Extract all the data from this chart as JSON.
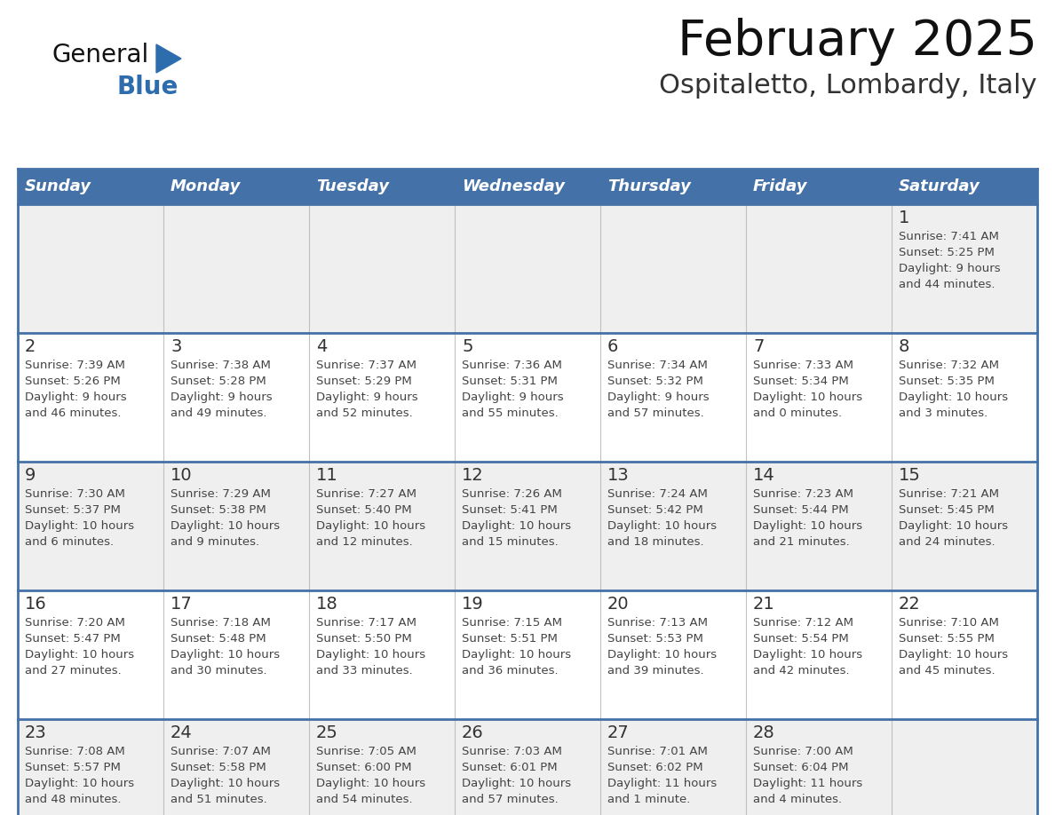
{
  "title": "February 2025",
  "subtitle": "Ospitaletto, Lombardy, Italy",
  "days_of_week": [
    "Sunday",
    "Monday",
    "Tuesday",
    "Wednesday",
    "Thursday",
    "Friday",
    "Saturday"
  ],
  "header_bg": "#4472A8",
  "header_text": "#FFFFFF",
  "cell_bg_light": "#EFEFEF",
  "cell_bg_white": "#FFFFFF",
  "cell_border": "#4472A8",
  "day_num_color": "#333333",
  "info_color": "#444444",
  "title_color": "#111111",
  "subtitle_color": "#333333",
  "logo_general_color": "#111111",
  "logo_blue_color": "#2E6DAD",
  "weeks": [
    [
      {
        "day": null,
        "info": ""
      },
      {
        "day": null,
        "info": ""
      },
      {
        "day": null,
        "info": ""
      },
      {
        "day": null,
        "info": ""
      },
      {
        "day": null,
        "info": ""
      },
      {
        "day": null,
        "info": ""
      },
      {
        "day": 1,
        "info": "Sunrise: 7:41 AM\nSunset: 5:25 PM\nDaylight: 9 hours\nand 44 minutes."
      }
    ],
    [
      {
        "day": 2,
        "info": "Sunrise: 7:39 AM\nSunset: 5:26 PM\nDaylight: 9 hours\nand 46 minutes."
      },
      {
        "day": 3,
        "info": "Sunrise: 7:38 AM\nSunset: 5:28 PM\nDaylight: 9 hours\nand 49 minutes."
      },
      {
        "day": 4,
        "info": "Sunrise: 7:37 AM\nSunset: 5:29 PM\nDaylight: 9 hours\nand 52 minutes."
      },
      {
        "day": 5,
        "info": "Sunrise: 7:36 AM\nSunset: 5:31 PM\nDaylight: 9 hours\nand 55 minutes."
      },
      {
        "day": 6,
        "info": "Sunrise: 7:34 AM\nSunset: 5:32 PM\nDaylight: 9 hours\nand 57 minutes."
      },
      {
        "day": 7,
        "info": "Sunrise: 7:33 AM\nSunset: 5:34 PM\nDaylight: 10 hours\nand 0 minutes."
      },
      {
        "day": 8,
        "info": "Sunrise: 7:32 AM\nSunset: 5:35 PM\nDaylight: 10 hours\nand 3 minutes."
      }
    ],
    [
      {
        "day": 9,
        "info": "Sunrise: 7:30 AM\nSunset: 5:37 PM\nDaylight: 10 hours\nand 6 minutes."
      },
      {
        "day": 10,
        "info": "Sunrise: 7:29 AM\nSunset: 5:38 PM\nDaylight: 10 hours\nand 9 minutes."
      },
      {
        "day": 11,
        "info": "Sunrise: 7:27 AM\nSunset: 5:40 PM\nDaylight: 10 hours\nand 12 minutes."
      },
      {
        "day": 12,
        "info": "Sunrise: 7:26 AM\nSunset: 5:41 PM\nDaylight: 10 hours\nand 15 minutes."
      },
      {
        "day": 13,
        "info": "Sunrise: 7:24 AM\nSunset: 5:42 PM\nDaylight: 10 hours\nand 18 minutes."
      },
      {
        "day": 14,
        "info": "Sunrise: 7:23 AM\nSunset: 5:44 PM\nDaylight: 10 hours\nand 21 minutes."
      },
      {
        "day": 15,
        "info": "Sunrise: 7:21 AM\nSunset: 5:45 PM\nDaylight: 10 hours\nand 24 minutes."
      }
    ],
    [
      {
        "day": 16,
        "info": "Sunrise: 7:20 AM\nSunset: 5:47 PM\nDaylight: 10 hours\nand 27 minutes."
      },
      {
        "day": 17,
        "info": "Sunrise: 7:18 AM\nSunset: 5:48 PM\nDaylight: 10 hours\nand 30 minutes."
      },
      {
        "day": 18,
        "info": "Sunrise: 7:17 AM\nSunset: 5:50 PM\nDaylight: 10 hours\nand 33 minutes."
      },
      {
        "day": 19,
        "info": "Sunrise: 7:15 AM\nSunset: 5:51 PM\nDaylight: 10 hours\nand 36 minutes."
      },
      {
        "day": 20,
        "info": "Sunrise: 7:13 AM\nSunset: 5:53 PM\nDaylight: 10 hours\nand 39 minutes."
      },
      {
        "day": 21,
        "info": "Sunrise: 7:12 AM\nSunset: 5:54 PM\nDaylight: 10 hours\nand 42 minutes."
      },
      {
        "day": 22,
        "info": "Sunrise: 7:10 AM\nSunset: 5:55 PM\nDaylight: 10 hours\nand 45 minutes."
      }
    ],
    [
      {
        "day": 23,
        "info": "Sunrise: 7:08 AM\nSunset: 5:57 PM\nDaylight: 10 hours\nand 48 minutes."
      },
      {
        "day": 24,
        "info": "Sunrise: 7:07 AM\nSunset: 5:58 PM\nDaylight: 10 hours\nand 51 minutes."
      },
      {
        "day": 25,
        "info": "Sunrise: 7:05 AM\nSunset: 6:00 PM\nDaylight: 10 hours\nand 54 minutes."
      },
      {
        "day": 26,
        "info": "Sunrise: 7:03 AM\nSunset: 6:01 PM\nDaylight: 10 hours\nand 57 minutes."
      },
      {
        "day": 27,
        "info": "Sunrise: 7:01 AM\nSunset: 6:02 PM\nDaylight: 11 hours\nand 1 minute."
      },
      {
        "day": 28,
        "info": "Sunrise: 7:00 AM\nSunset: 6:04 PM\nDaylight: 11 hours\nand 4 minutes."
      },
      {
        "day": null,
        "info": ""
      }
    ]
  ]
}
